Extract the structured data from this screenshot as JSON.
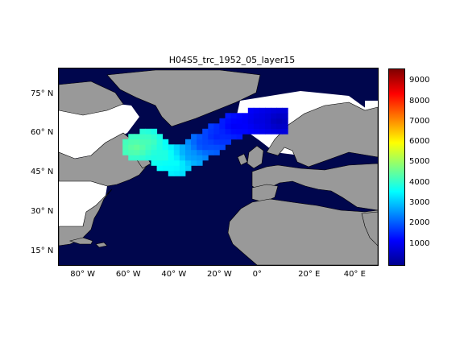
{
  "title": "H04S5_trc_1952_05_layer15",
  "map": {
    "lon_range": [
      -90,
      50
    ],
    "lat_range": [
      10,
      85
    ],
    "ocean_color": "#00064d",
    "land_color": "#999999",
    "nodata_color": "#ffffff",
    "lat_ticks": [
      {
        "value": 75,
        "label": "75° N"
      },
      {
        "value": 60,
        "label": "60° N"
      },
      {
        "value": 45,
        "label": "45° N"
      },
      {
        "value": 30,
        "label": "30° N"
      },
      {
        "value": 15,
        "label": "15° N"
      }
    ],
    "lon_ticks": [
      {
        "value": -80,
        "label": "80° W"
      },
      {
        "value": -60,
        "label": "60° W"
      },
      {
        "value": -40,
        "label": "40° W"
      },
      {
        "value": -20,
        "label": "20° W"
      },
      {
        "value": 0,
        "label": "0°"
      },
      {
        "value": 20,
        "label": "20° E"
      },
      {
        "value": 40,
        "label": "40° E"
      }
    ]
  },
  "colorbar": {
    "min": 0,
    "max": 9600,
    "colormap": "jet",
    "ticks": [
      1000,
      2000,
      3000,
      4000,
      5000,
      6000,
      7000,
      8000,
      9000
    ],
    "tick_labels": [
      "1000",
      "2000",
      "3000",
      "4000",
      "5000",
      "6000",
      "7000",
      "8000",
      "9000"
    ]
  },
  "chart_data": {
    "type": "heatmap",
    "title": "H04S5_trc_1952_05_layer15",
    "variable_range": [
      0,
      9600
    ],
    "plume": [
      {
        "lon": -57,
        "lat": 54,
        "value": 4600
      },
      {
        "lon": -52,
        "lat": 56,
        "value": 4300
      },
      {
        "lon": -45,
        "lat": 51,
        "value": 4000
      },
      {
        "lon": -40,
        "lat": 48,
        "value": 3700
      },
      {
        "lon": -34,
        "lat": 51,
        "value": 2600
      },
      {
        "lon": -28,
        "lat": 55,
        "value": 1800
      },
      {
        "lon": -22,
        "lat": 58,
        "value": 1500
      },
      {
        "lon": -14,
        "lat": 62,
        "value": 1100
      },
      {
        "lon": -3,
        "lat": 64,
        "value": 900
      },
      {
        "lon": 5,
        "lat": 64,
        "value": 500
      }
    ]
  }
}
